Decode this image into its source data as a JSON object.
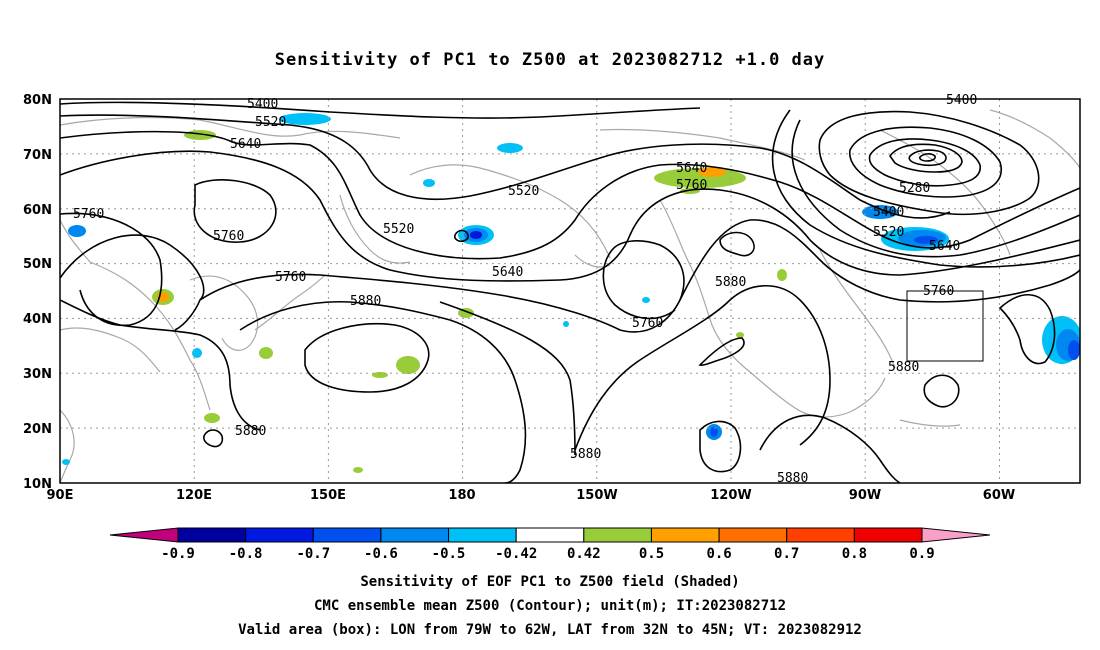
{
  "title": "Sensitivity of PC1 to Z500 at 2023082712 +1.0 day",
  "lat_labels": [
    "80N",
    "70N",
    "60N",
    "50N",
    "40N",
    "30N",
    "20N",
    "10N"
  ],
  "lon_labels": [
    "90E",
    "120E",
    "150E",
    "180",
    "150W",
    "120W",
    "90W",
    "60W"
  ],
  "contour_labels": [
    "5400",
    "5520",
    "5640",
    "5760",
    "5760",
    "5760",
    "5520",
    "5520",
    "5640",
    "5880",
    "5880",
    "5640",
    "5760",
    "5880",
    "5760",
    "5880",
    "5880",
    "5400",
    "5280",
    "5400",
    "5520",
    "5640",
    "5760",
    "5880",
    "5880"
  ],
  "colorbar": {
    "labels": [
      "-0.9",
      "-0.8",
      "-0.7",
      "-0.6",
      "-0.5",
      "-0.42",
      "0.42",
      "0.5",
      "0.6",
      "0.7",
      "0.8",
      "0.9"
    ],
    "colors": [
      "#0000a0",
      "#0018e0",
      "#0050f0",
      "#0088f0",
      "#00c0f8",
      "#ffffff",
      "#98cc38",
      "#ffa000",
      "#ff7000",
      "#ff4000",
      "#f00000"
    ],
    "left_arrow_color": "#c0007c",
    "right_arrow_color": "#f8a0c8"
  },
  "captions": [
    "Sensitivity of EOF PC1 to Z500 field (Shaded)",
    "CMC ensemble mean Z500 (Contour); unit(m); IT:2023082712",
    "Valid area (box): LON from 79W to 62W, LAT from 32N to 45N; VT: 2023082912"
  ]
}
